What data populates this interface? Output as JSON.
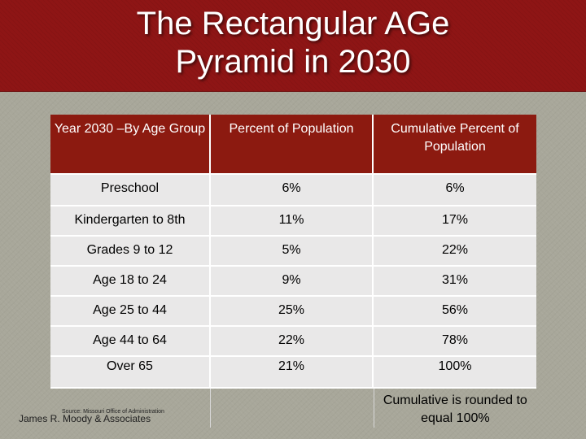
{
  "title": {
    "line1": "The Rectangular AGe",
    "line2": "Pyramid in 2030"
  },
  "table": {
    "headers": {
      "col1": "Year 2030 –By Age Group",
      "col2": "Percent of Population",
      "col3": "Cumulative Percent of Population"
    },
    "rows": [
      {
        "group": "Preschool",
        "percent": "6%",
        "cumulative": "6%"
      },
      {
        "group": "Kindergarten to 8th",
        "percent": "11%",
        "cumulative": "17%"
      },
      {
        "group": "Grades 9 to 12",
        "percent": "5%",
        "cumulative": "22%"
      },
      {
        "group": "Age 18 to 24",
        "percent": "9%",
        "cumulative": "31%"
      },
      {
        "group": "Age 25 to 44",
        "percent": "25%",
        "cumulative": "56%"
      },
      {
        "group": "Age 44 to 64",
        "percent": "22%",
        "cumulative": "78%"
      },
      {
        "group": "Over 65",
        "percent": "21%",
        "cumulative": "100%"
      }
    ],
    "note": "Cumulative is rounded to equal 100%"
  },
  "footer": {
    "source": "Source: Missouri Office of Administration",
    "author": "James R. Moody & Associates"
  },
  "colors": {
    "title_bar": "#8e1515",
    "header_row": "#8c1a10",
    "cell_bg": "#e9e8e8",
    "slide_bg": "#a8a79a"
  }
}
